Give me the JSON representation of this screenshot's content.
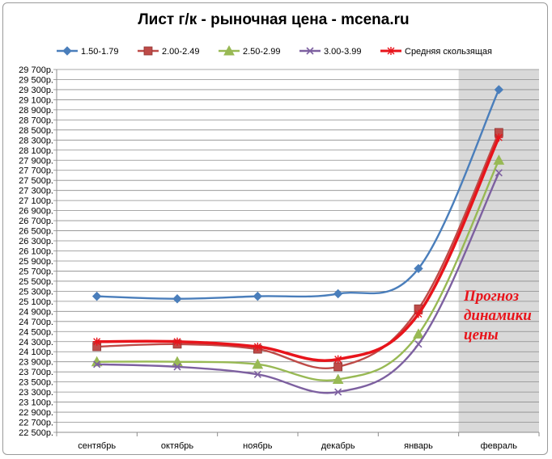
{
  "chart_data": {
    "type": "line",
    "title": "Лист г/к  - рыночная цена  - mcena.ru",
    "xlabel": "",
    "ylabel": "",
    "categories": [
      "сентябрь",
      "октябрь",
      "ноябрь",
      "декабрь",
      "январь",
      "февраль"
    ],
    "ylim": [
      22500,
      29700
    ],
    "ytick_step": 200,
    "ytick_suffix": "р.",
    "grid": "horizontal",
    "legend_position": "top",
    "shaded_region": {
      "category": "февраль",
      "color": "#d9d9d9"
    },
    "series": [
      {
        "name": "1.50-1.79",
        "color": "#4a7ebb",
        "marker": "diamond",
        "values": [
          25200,
          25150,
          25200,
          25250,
          25750,
          29300
        ]
      },
      {
        "name": "2.00-2.49",
        "color": "#be4b48",
        "marker": "square",
        "values": [
          24200,
          24250,
          24150,
          23800,
          24950,
          28450
        ]
      },
      {
        "name": "2.50-2.99",
        "color": "#98b954",
        "marker": "triangle",
        "values": [
          23900,
          23900,
          23850,
          23550,
          24450,
          27900
        ]
      },
      {
        "name": "3.00-3.99",
        "color": "#7d60a0",
        "marker": "x",
        "values": [
          23850,
          23800,
          23650,
          23300,
          24250,
          27650
        ]
      },
      {
        "name": "Средняя скользящая",
        "color": "#e8141b",
        "marker": "star",
        "values": [
          24300,
          24300,
          24200,
          23950,
          24850,
          28350
        ],
        "bold": true
      }
    ],
    "annotation": [
      "Прогноз",
      "динамики",
      "цены"
    ]
  }
}
